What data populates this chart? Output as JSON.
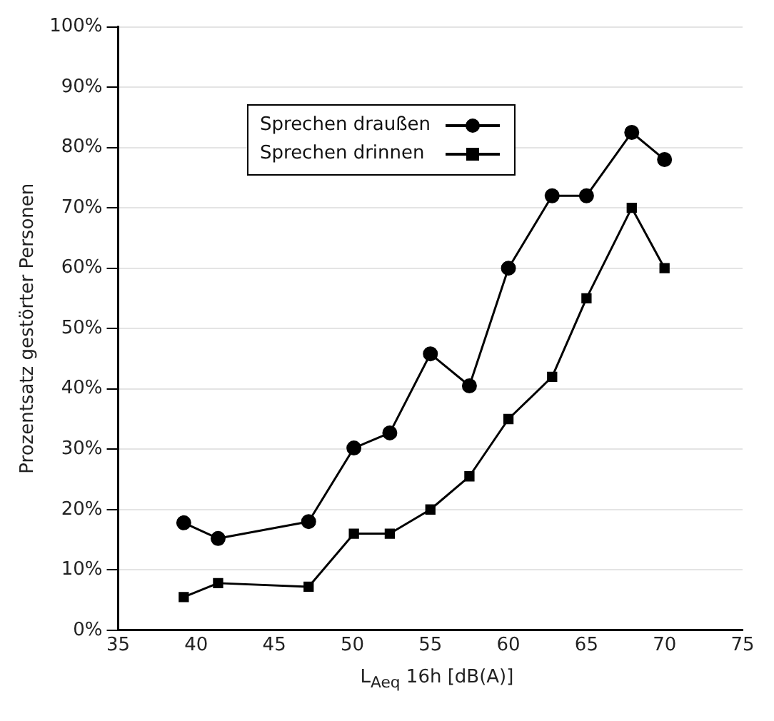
{
  "chart_data": {
    "type": "line",
    "xlabel": "L$_{Aeq}$ 16h [dB(A)]",
    "ylabel": "Prozentsatz gestörter Personen",
    "x": [
      39.2,
      41.4,
      47.2,
      50.1,
      52.4,
      55,
      57.5,
      60,
      62.8,
      65,
      67.9,
      70
    ],
    "series": [
      {
        "name": "Sprechen draußen",
        "color": "#000000",
        "marker": "circle",
        "values": [
          17.8,
          15.2,
          18,
          30.2,
          32.7,
          45.8,
          40.5,
          60,
          72,
          72,
          82.5,
          78
        ]
      },
      {
        "name": "Sprechen drinnen",
        "color": "#000000",
        "marker": "square",
        "values": [
          5.5,
          7.8,
          7.2,
          16,
          16,
          20,
          25.5,
          35,
          42,
          55,
          70,
          60
        ]
      }
    ],
    "xlim": [
      35,
      75
    ],
    "xticks": [
      35,
      40,
      45,
      50,
      55,
      60,
      65,
      70,
      75
    ],
    "ylim": [
      0,
      100
    ],
    "yticks": [
      {
        "value": 0,
        "label": "0%"
      },
      {
        "value": 10,
        "label": "10%"
      },
      {
        "value": 20,
        "label": "20%"
      },
      {
        "value": 30,
        "label": "30%"
      },
      {
        "value": 40,
        "label": "40%"
      },
      {
        "value": 50,
        "label": "50%"
      },
      {
        "value": 60,
        "label": "60%"
      },
      {
        "value": 70,
        "label": "70%"
      },
      {
        "value": 80,
        "label": "80%"
      },
      {
        "value": 90,
        "label": "90%"
      },
      {
        "value": 100,
        "label": "100%"
      }
    ],
    "grid": "y",
    "legend": "top left",
    "line_style": "solid"
  }
}
